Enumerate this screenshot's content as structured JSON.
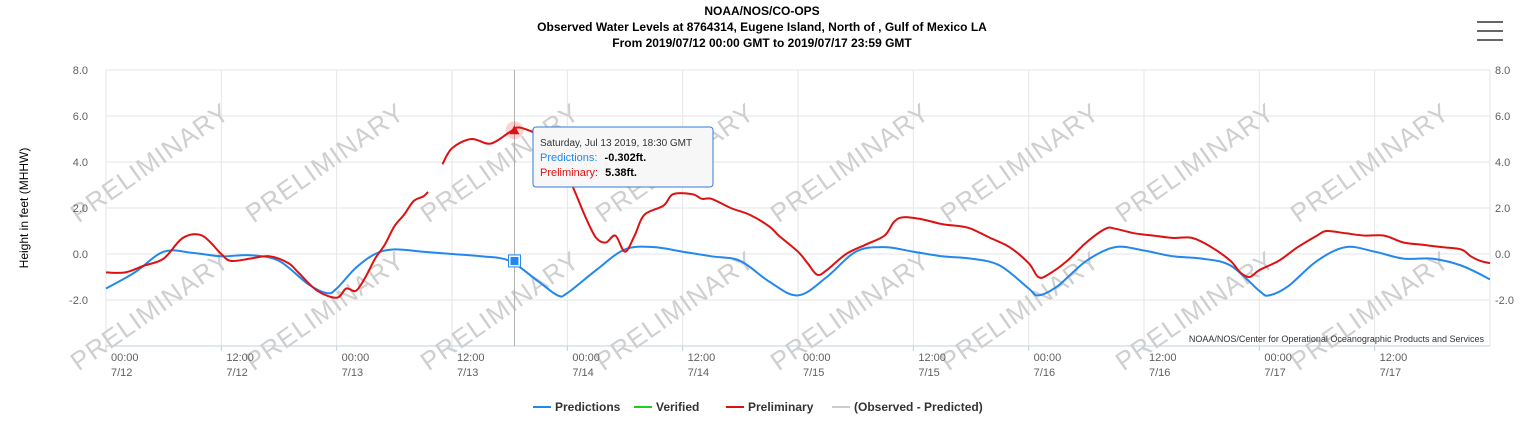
{
  "header": {
    "title_line1": "NOAA/NOS/CO-OPS",
    "title_line2": "Observed Water Levels at 8764314, Eugene Island, North of , Gulf of Mexico LA",
    "title_line3": "From 2019/07/12 00:00 GMT to 2019/07/17 23:59 GMT"
  },
  "menu": {
    "icon": "hamburger-menu-icon"
  },
  "watermark": "PRELIMINARY",
  "credit": "NOAA/NOS/Center for Operational Oceanographic Products and Services",
  "tooltip": {
    "date": "Saturday, Jul 13 2019, 18:30 GMT",
    "pred_label": "Predictions:",
    "pred_value": "-0.302ft.",
    "prelim_label": "Preliminary:",
    "prelim_value": "5.38ft."
  },
  "colors": {
    "predictions": "#2288ee",
    "verified": "#22cc22",
    "preliminary": "#dd1111",
    "observed_minus_predicted": "#cccccc"
  },
  "chart_data": {
    "type": "line",
    "ylabel": "Height in feet (MHHW)",
    "ylim": [
      -4,
      8
    ],
    "yticks": [
      "8.0",
      "6.0",
      "4.0",
      "2.0",
      "0.0",
      "-2.0"
    ],
    "xlim_hours": [
      0,
      144
    ],
    "xticks": [
      {
        "time": "00:00",
        "date": "7/12"
      },
      {
        "time": "12:00",
        "date": "7/12"
      },
      {
        "time": "00:00",
        "date": "7/13"
      },
      {
        "time": "12:00",
        "date": "7/13"
      },
      {
        "time": "00:00",
        "date": "7/14"
      },
      {
        "time": "12:00",
        "date": "7/14"
      },
      {
        "time": "00:00",
        "date": "7/15"
      },
      {
        "time": "12:00",
        "date": "7/15"
      },
      {
        "time": "00:00",
        "date": "7/16"
      },
      {
        "time": "12:00",
        "date": "7/16"
      },
      {
        "time": "00:00",
        "date": "7/17"
      },
      {
        "time": "12:00",
        "date": "7/17"
      }
    ],
    "series": [
      {
        "name": "Predictions",
        "points": [
          [
            0,
            -1.5
          ],
          [
            3,
            -0.8
          ],
          [
            6,
            0.1
          ],
          [
            9,
            0.05
          ],
          [
            12,
            -0.1
          ],
          [
            15,
            -0.05
          ],
          [
            18,
            -0.3
          ],
          [
            21,
            -1.3
          ],
          [
            23,
            -1.7
          ],
          [
            24,
            -1.5
          ],
          [
            26,
            -0.6
          ],
          [
            28,
            0.0
          ],
          [
            30,
            0.2
          ],
          [
            33,
            0.1
          ],
          [
            36,
            0.0
          ],
          [
            39,
            -0.1
          ],
          [
            42,
            -0.3
          ],
          [
            45,
            -1.2
          ],
          [
            47,
            -1.8
          ],
          [
            48,
            -1.7
          ],
          [
            51,
            -0.7
          ],
          [
            54,
            0.2
          ],
          [
            57,
            0.3
          ],
          [
            60,
            0.1
          ],
          [
            63,
            -0.1
          ],
          [
            66,
            -0.3
          ],
          [
            69,
            -1.2
          ],
          [
            72,
            -1.8
          ],
          [
            75,
            -1.0
          ],
          [
            78,
            0.1
          ],
          [
            81,
            0.3
          ],
          [
            84,
            0.1
          ],
          [
            87,
            -0.1
          ],
          [
            90,
            -0.2
          ],
          [
            93,
            -0.5
          ],
          [
            96,
            -1.5
          ],
          [
            97,
            -1.8
          ],
          [
            99,
            -1.4
          ],
          [
            102,
            -0.3
          ],
          [
            105,
            0.3
          ],
          [
            108,
            0.15
          ],
          [
            111,
            -0.1
          ],
          [
            114,
            -0.2
          ],
          [
            117,
            -0.5
          ],
          [
            120,
            -1.6
          ],
          [
            121,
            -1.8
          ],
          [
            123,
            -1.4
          ],
          [
            126,
            -0.3
          ],
          [
            129,
            0.3
          ],
          [
            132,
            0.1
          ],
          [
            135,
            -0.2
          ],
          [
            138,
            -0.2
          ],
          [
            141,
            -0.5
          ],
          [
            144,
            -1.1
          ]
        ]
      },
      {
        "name": "Verified",
        "points": []
      },
      {
        "name": "Preliminary",
        "segments": [
          [
            [
              0,
              -0.8
            ],
            [
              2,
              -0.8
            ],
            [
              4,
              -0.5
            ],
            [
              6,
              -0.2
            ],
            [
              8,
              0.7
            ],
            [
              10,
              0.8
            ],
            [
              12,
              0.0
            ],
            [
              13,
              -0.3
            ],
            [
              15,
              -0.2
            ],
            [
              17,
              -0.1
            ],
            [
              19,
              -0.4
            ],
            [
              20,
              -0.8
            ],
            [
              22,
              -1.6
            ],
            [
              24,
              -1.9
            ],
            [
              25,
              -1.5
            ],
            [
              26,
              -1.6
            ],
            [
              27,
              -1.0
            ],
            [
              28,
              -0.2
            ],
            [
              29,
              0.4
            ],
            [
              30,
              1.2
            ],
            [
              31,
              1.7
            ],
            [
              32,
              2.3
            ],
            [
              33,
              2.5
            ],
            [
              33.5,
              2.7
            ]
          ],
          [
            [
              35,
              3.9
            ],
            [
              36,
              4.6
            ],
            [
              38,
              5.0
            ],
            [
              40,
              4.8
            ],
            [
              42,
              5.3
            ],
            [
              43,
              5.5
            ],
            [
              45,
              5.2
            ],
            [
              46,
              5.0
            ],
            [
              47,
              4.7
            ],
            [
              48,
              3.5
            ],
            [
              49,
              2.5
            ],
            [
              50,
              1.5
            ],
            [
              51,
              0.7
            ],
            [
              52,
              0.5
            ],
            [
              53,
              0.8
            ],
            [
              54,
              0.1
            ],
            [
              55,
              0.8
            ],
            [
              56,
              1.7
            ],
            [
              58,
              2.1
            ],
            [
              59,
              2.6
            ],
            [
              61,
              2.6
            ],
            [
              62,
              2.4
            ],
            [
              63,
              2.4
            ],
            [
              65,
              2.0
            ],
            [
              67,
              1.7
            ],
            [
              69,
              1.2
            ],
            [
              70,
              0.8
            ],
            [
              72,
              0.1
            ],
            [
              73,
              -0.4
            ],
            [
              74,
              -0.9
            ],
            [
              75,
              -0.7
            ],
            [
              77,
              0.0
            ],
            [
              79,
              0.4
            ],
            [
              81,
              0.8
            ],
            [
              82,
              1.4
            ],
            [
              83,
              1.6
            ],
            [
              85,
              1.5
            ],
            [
              87,
              1.3
            ],
            [
              89,
              1.2
            ],
            [
              90,
              1.1
            ],
            [
              92,
              0.7
            ],
            [
              94,
              0.3
            ],
            [
              96,
              -0.4
            ],
            [
              97,
              -1.0
            ],
            [
              98,
              -0.9
            ],
            [
              100,
              -0.3
            ],
            [
              102,
              0.5
            ],
            [
              104,
              1.1
            ],
            [
              105,
              1.1
            ],
            [
              107,
              0.9
            ],
            [
              109,
              0.8
            ],
            [
              111,
              0.7
            ],
            [
              113,
              0.7
            ],
            [
              115,
              0.3
            ],
            [
              117,
              -0.3
            ],
            [
              118,
              -0.8
            ],
            [
              119,
              -1.0
            ],
            [
              120,
              -0.7
            ],
            [
              122,
              -0.3
            ],
            [
              124,
              0.3
            ],
            [
              126,
              0.8
            ],
            [
              127,
              1.0
            ],
            [
              129,
              0.9
            ],
            [
              131,
              0.8
            ],
            [
              133,
              0.8
            ],
            [
              135,
              0.5
            ],
            [
              137,
              0.4
            ],
            [
              139,
              0.3
            ],
            [
              141,
              0.2
            ],
            [
              142,
              -0.1
            ],
            [
              143,
              -0.3
            ],
            [
              144,
              -0.4
            ]
          ]
        ]
      },
      {
        "name": "(Observed - Predicted)",
        "points": []
      }
    ],
    "highlight": {
      "hour": 42.5,
      "predicted": -0.302,
      "preliminary": 5.38
    },
    "legend": [
      "Predictions",
      "Verified",
      "Preliminary",
      "(Observed - Predicted)"
    ],
    "legend_position": "bottom-center",
    "grid": true
  }
}
